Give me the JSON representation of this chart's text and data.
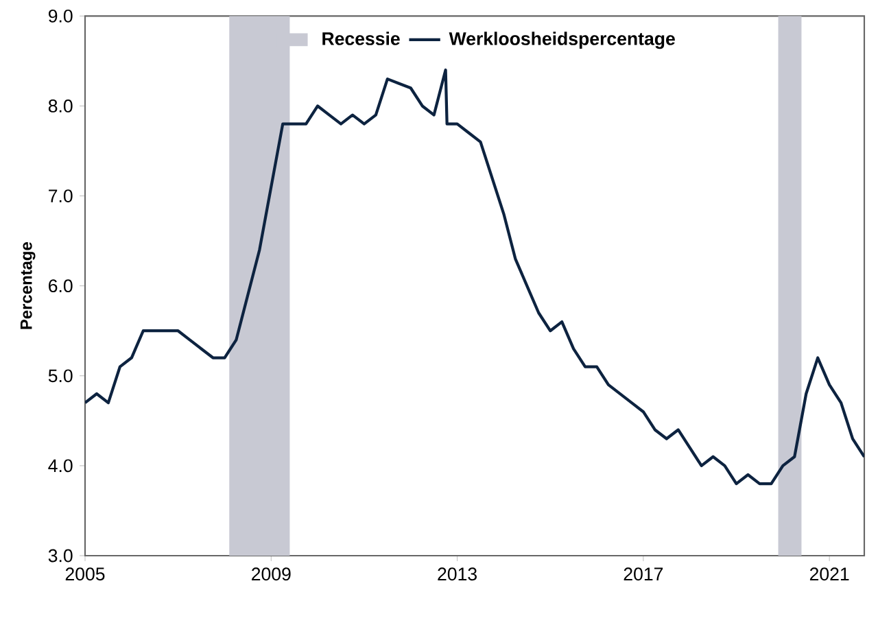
{
  "chart_data": {
    "type": "line",
    "ylabel": "Percentage",
    "x": [
      2005.0,
      2005.25,
      2005.5,
      2005.75,
      2006.0,
      2006.25,
      2006.5,
      2006.75,
      2007.0,
      2007.25,
      2007.5,
      2007.75,
      2008.0,
      2008.25,
      2008.5,
      2008.75,
      2009.0,
      2009.25,
      2009.5,
      2009.75,
      2010.0,
      2010.25,
      2010.5,
      2010.75,
      2011.0,
      2011.25,
      2011.5,
      2011.75,
      2012.0,
      2012.25,
      2012.5,
      2012.75,
      2012.78,
      2013.0,
      2013.25,
      2013.5,
      2013.75,
      2014.0,
      2014.25,
      2014.5,
      2014.75,
      2015.0,
      2015.25,
      2015.5,
      2015.75,
      2016.0,
      2016.25,
      2016.5,
      2016.75,
      2017.0,
      2017.25,
      2017.5,
      2017.75,
      2018.0,
      2018.25,
      2018.5,
      2018.75,
      2019.0,
      2019.25,
      2019.5,
      2019.75,
      2020.0,
      2020.25,
      2020.5,
      2020.75,
      2021.0,
      2021.25,
      2021.5,
      2021.75
    ],
    "series": [
      {
        "name": "Werkloosheidspercentage",
        "color": "#0d2340",
        "values": [
          4.7,
          4.8,
          4.7,
          5.1,
          5.2,
          5.5,
          5.5,
          5.5,
          5.5,
          5.4,
          5.3,
          5.2,
          5.2,
          5.4,
          5.9,
          6.4,
          7.1,
          7.8,
          7.8,
          7.8,
          8.0,
          7.9,
          7.8,
          7.9,
          7.8,
          7.9,
          8.3,
          8.25,
          8.2,
          8.0,
          7.9,
          8.4,
          7.8,
          7.8,
          7.7,
          7.6,
          7.2,
          6.8,
          6.3,
          6.0,
          5.7,
          5.5,
          5.6,
          5.3,
          5.1,
          5.1,
          4.9,
          4.8,
          4.7,
          4.6,
          4.4,
          4.3,
          4.4,
          4.2,
          4.0,
          4.1,
          4.0,
          3.8,
          3.9,
          3.8,
          3.8,
          4.0,
          4.1,
          4.8,
          5.2,
          4.9,
          4.7,
          4.3,
          4.1
        ]
      }
    ],
    "xlim": [
      2005,
      2021.75
    ],
    "ylim": [
      3,
      9
    ],
    "xticks": [
      2005,
      2009,
      2013,
      2017,
      2021
    ],
    "yticks": [
      {
        "value": 3,
        "label": "3.0"
      },
      {
        "value": 4,
        "label": "4.0"
      },
      {
        "value": 5,
        "label": "5.0"
      },
      {
        "value": 6,
        "label": "6.0"
      },
      {
        "value": 7,
        "label": "7.0"
      },
      {
        "value": 8,
        "label": "8.0"
      },
      {
        "value": 9,
        "label": "9.0"
      }
    ],
    "bands": [
      {
        "axis": "x",
        "from": 2008.1,
        "to": 2009.4,
        "label": "Recessie",
        "color": "#c8c9d3"
      },
      {
        "axis": "x",
        "from": 2019.9,
        "to": 2020.4,
        "color": "#c8c9d3"
      }
    ],
    "grid": false,
    "legend": "top",
    "marker": "none",
    "line_style": "solid"
  }
}
